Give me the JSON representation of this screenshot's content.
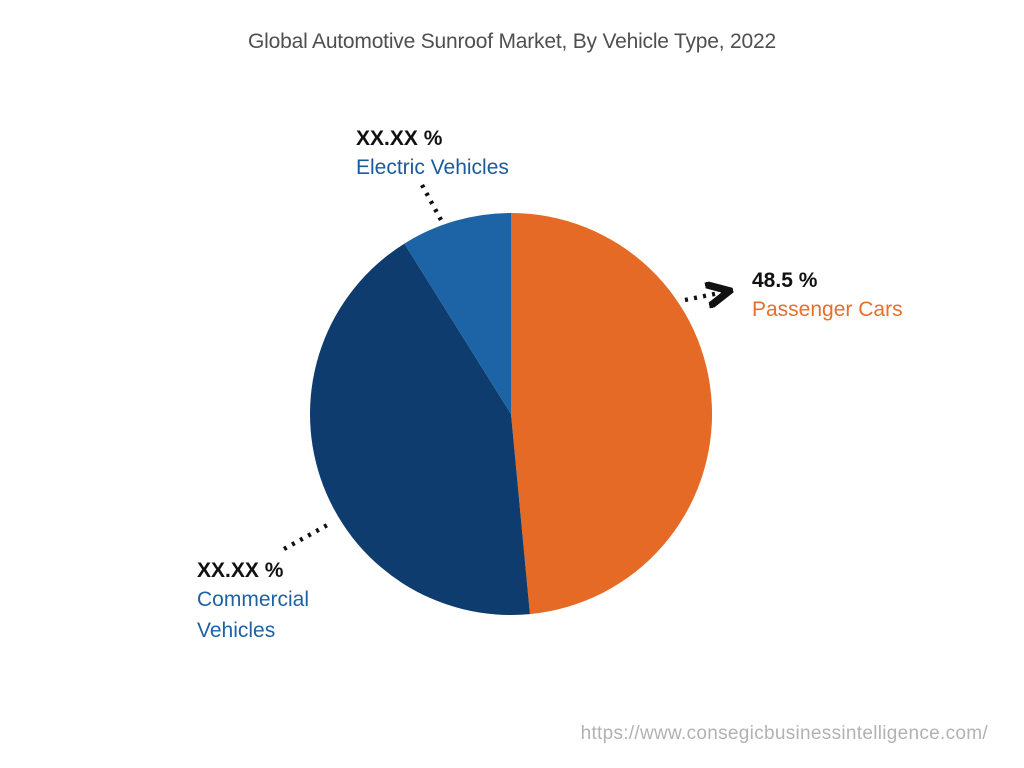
{
  "title": "Global Automotive Sunroof Market, By Vehicle Type, 2022",
  "source_url": "https://www.consegicbusinessintelligence.com/",
  "chart_data": {
    "type": "pie",
    "title": "Global Automotive Sunroof Market, By Vehicle Type, 2022",
    "unit": "%",
    "start_angle_deg": 0,
    "direction": "clockwise",
    "legend_position": "none",
    "slices": [
      {
        "label": "Passenger Cars",
        "display_value": "48.5 %",
        "value_pct": 48.5,
        "value_masked": false,
        "color": "#e56a26",
        "label_color": "#e56f2c"
      },
      {
        "label": "Commercial Vehicles",
        "display_value": "XX.XX %",
        "value_pct": 42.6,
        "value_masked": true,
        "color": "#0e3c6e",
        "label_color": "#1e62a6"
      },
      {
        "label": "Electric Vehicles",
        "display_value": "XX.XX %",
        "value_pct": 8.9,
        "value_masked": true,
        "color": "#1c64a5",
        "label_color": "#1a5a9e"
      }
    ]
  }
}
